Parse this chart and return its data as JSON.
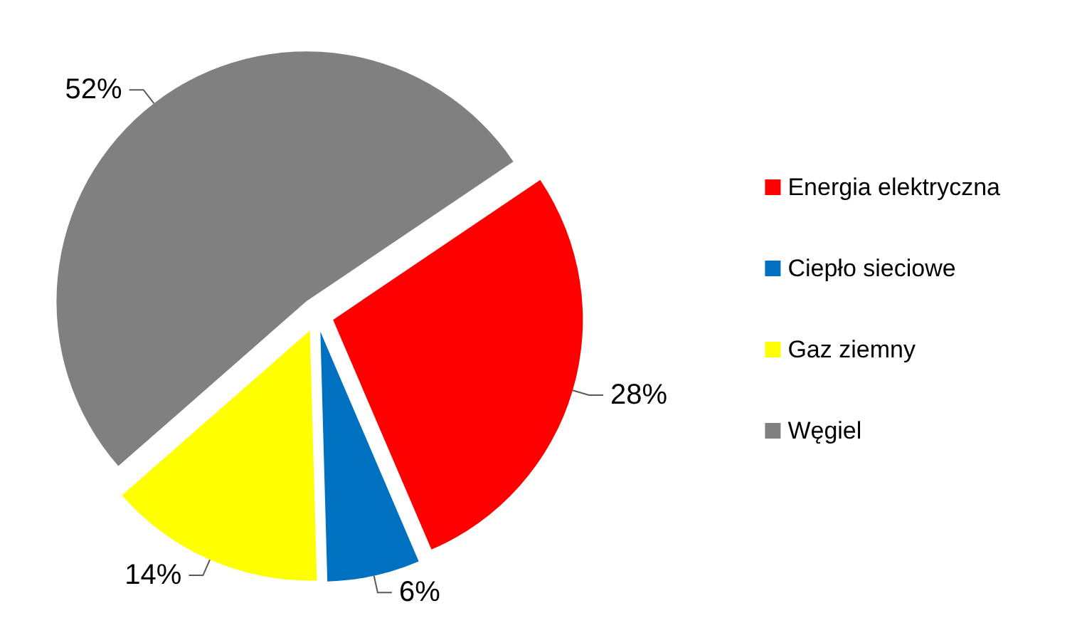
{
  "chart_data": {
    "type": "pie",
    "categories": [
      "Energia elektryczna",
      "Ciepło sieciowe",
      "Gaz ziemny",
      "Węgiel"
    ],
    "values": [
      28,
      6,
      14,
      52
    ],
    "colors": [
      "#ff0000",
      "#0070c0",
      "#ffff00",
      "#808080"
    ],
    "value_labels": [
      "28%",
      "6%",
      "14%",
      "52%"
    ],
    "legend": "right"
  }
}
